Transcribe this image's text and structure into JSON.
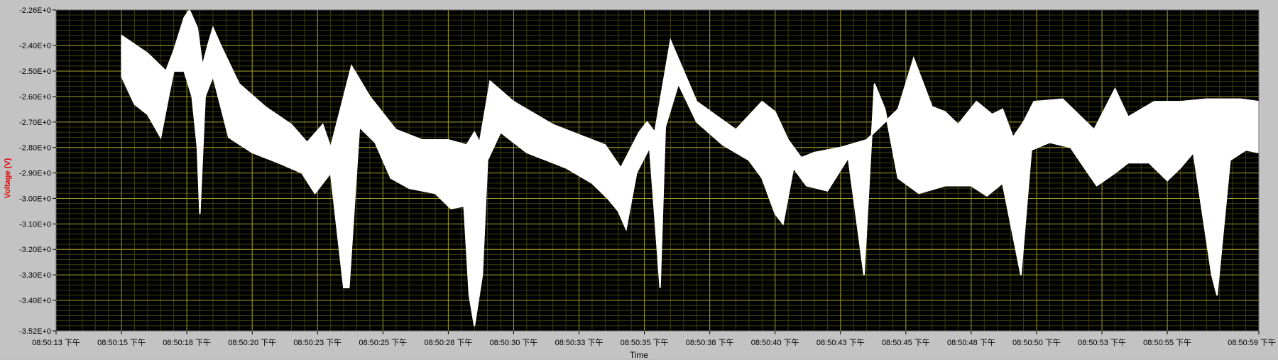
{
  "window": {
    "title": ""
  },
  "chart_data": {
    "type": "line",
    "title": "",
    "xlabel": "Time",
    "ylabel": "Voltage (V)",
    "ylim": [
      -3.52,
      -2.26
    ],
    "y_ticks": [
      "-2.26E+0",
      "-2.40E+0",
      "-2.50E+0",
      "-2.60E+0",
      "-2.70E+0",
      "-2.80E+0",
      "-2.90E+0",
      "-3.00E+0",
      "-3.10E+0",
      "-3.20E+0",
      "-3.30E+0",
      "-3.40E+0",
      "-3.52E+0"
    ],
    "y_tick_values": [
      -2.26,
      -2.4,
      -2.5,
      -2.6,
      -2.7,
      -2.8,
      -2.9,
      -3.0,
      -3.1,
      -3.2,
      -3.3,
      -3.4,
      -3.52
    ],
    "x_ticks": [
      "08:50:13 下午",
      "08:50:15 下午",
      "08:50:18 下午",
      "08:50:20 下午",
      "08:50:23 下午",
      "08:50:25 下午",
      "08:50:28 下午",
      "08:50:30 下午",
      "08:50:33 下午",
      "08:50:35 下午",
      "08:50:38 下午",
      "08:50:40 下午",
      "08:50:43 下午",
      "08:50:45 下午",
      "08:50:48 下午",
      "08:50:50 下午",
      "08:50:53 下午",
      "08:50:55 下午",
      "08:50:59 下午"
    ],
    "x_tick_seconds": [
      13,
      15.5,
      18,
      20.5,
      23,
      25.5,
      28,
      30.5,
      33,
      35.5,
      38,
      40.5,
      43,
      45.5,
      48,
      50.5,
      53,
      55.5,
      59
    ],
    "xlim": [
      13,
      59
    ],
    "grid": true,
    "colors": {
      "background": "#000000",
      "trace": "#ffffff",
      "grid": "#9a9a28",
      "grid_minor": "#3d3d12",
      "ylabel_color": "#e00000",
      "panel": "#c3c3c3"
    },
    "series": [
      {
        "upper": [
          [
            15.5,
            -2.36
          ],
          [
            16.5,
            -2.43
          ],
          [
            17.2,
            -2.5
          ],
          [
            17.5,
            -2.42
          ],
          [
            17.9,
            -2.29
          ],
          [
            18.1,
            -2.26
          ],
          [
            18.4,
            -2.33
          ],
          [
            18.6,
            -2.48
          ],
          [
            18.8,
            -2.4
          ],
          [
            19.0,
            -2.33
          ],
          [
            19.3,
            -2.4
          ],
          [
            20.0,
            -2.55
          ],
          [
            21.0,
            -2.64
          ],
          [
            22.0,
            -2.71
          ],
          [
            22.6,
            -2.78
          ],
          [
            23.2,
            -2.71
          ],
          [
            23.5,
            -2.8
          ],
          [
            24.0,
            -2.6
          ],
          [
            24.3,
            -2.48
          ],
          [
            25.0,
            -2.6
          ],
          [
            26.0,
            -2.73
          ],
          [
            27.0,
            -2.77
          ],
          [
            28.0,
            -2.77
          ],
          [
            28.7,
            -2.79
          ],
          [
            29.0,
            -2.74
          ],
          [
            29.2,
            -2.78
          ],
          [
            29.6,
            -2.54
          ],
          [
            30.5,
            -2.62
          ],
          [
            32.0,
            -2.71
          ],
          [
            33.0,
            -2.75
          ],
          [
            34.0,
            -2.79
          ],
          [
            34.6,
            -2.88
          ],
          [
            35.3,
            -2.74
          ],
          [
            35.6,
            -2.7
          ],
          [
            35.9,
            -2.74
          ],
          [
            36.5,
            -2.38
          ],
          [
            37.5,
            -2.62
          ],
          [
            39.0,
            -2.73
          ],
          [
            40.0,
            -2.62
          ],
          [
            40.5,
            -2.66
          ],
          [
            41.0,
            -2.77
          ],
          [
            41.5,
            -2.84
          ],
          [
            42.0,
            -2.82
          ],
          [
            43.0,
            -2.8
          ],
          [
            44.0,
            -2.77
          ],
          [
            45.2,
            -2.65
          ],
          [
            45.8,
            -2.45
          ],
          [
            46.5,
            -2.64
          ],
          [
            47.0,
            -2.66
          ],
          [
            47.5,
            -2.71
          ],
          [
            48.2,
            -2.62
          ],
          [
            48.8,
            -2.67
          ],
          [
            49.2,
            -2.65
          ],
          [
            49.6,
            -2.76
          ],
          [
            50.0,
            -2.7
          ],
          [
            50.4,
            -2.62
          ],
          [
            51.5,
            -2.61
          ],
          [
            52.7,
            -2.73
          ],
          [
            53.5,
            -2.57
          ],
          [
            54.0,
            -2.68
          ],
          [
            55.0,
            -2.62
          ],
          [
            56.0,
            -2.62
          ],
          [
            57.0,
            -2.61
          ],
          [
            58.3,
            -2.61
          ],
          [
            59.0,
            -2.62
          ]
        ],
        "lower": [
          [
            15.5,
            -2.52
          ],
          [
            16.0,
            -2.63
          ],
          [
            16.5,
            -2.67
          ],
          [
            17.0,
            -2.76
          ],
          [
            17.3,
            -2.6
          ],
          [
            17.5,
            -2.5
          ],
          [
            17.9,
            -2.5
          ],
          [
            18.2,
            -2.6
          ],
          [
            18.4,
            -2.8
          ],
          [
            18.5,
            -3.06
          ],
          [
            18.7,
            -2.6
          ],
          [
            19.0,
            -2.52
          ],
          [
            19.6,
            -2.76
          ],
          [
            20.5,
            -2.82
          ],
          [
            21.5,
            -2.86
          ],
          [
            22.4,
            -2.9
          ],
          [
            22.9,
            -2.98
          ],
          [
            23.5,
            -2.9
          ],
          [
            24.0,
            -3.35
          ],
          [
            24.2,
            -3.35
          ],
          [
            24.6,
            -2.72
          ],
          [
            25.2,
            -2.78
          ],
          [
            25.8,
            -2.92
          ],
          [
            26.5,
            -2.96
          ],
          [
            27.5,
            -2.98
          ],
          [
            28.1,
            -3.04
          ],
          [
            28.6,
            -3.03
          ],
          [
            28.8,
            -3.38
          ],
          [
            29.0,
            -3.5
          ],
          [
            29.3,
            -3.3
          ],
          [
            29.5,
            -2.85
          ],
          [
            30.0,
            -2.74
          ],
          [
            31.0,
            -2.82
          ],
          [
            32.5,
            -2.88
          ],
          [
            33.5,
            -2.94
          ],
          [
            34.1,
            -3.0
          ],
          [
            34.5,
            -3.05
          ],
          [
            34.8,
            -3.12
          ],
          [
            35.2,
            -2.9
          ],
          [
            35.7,
            -2.8
          ],
          [
            36.1,
            -3.35
          ],
          [
            36.3,
            -2.72
          ],
          [
            36.8,
            -2.55
          ],
          [
            37.5,
            -2.7
          ],
          [
            38.5,
            -2.79
          ],
          [
            39.5,
            -2.85
          ],
          [
            40.0,
            -2.92
          ],
          [
            40.5,
            -3.06
          ],
          [
            40.8,
            -3.1
          ],
          [
            41.2,
            -2.88
          ],
          [
            41.7,
            -2.95
          ],
          [
            42.5,
            -2.97
          ],
          [
            43.3,
            -2.84
          ],
          [
            43.9,
            -3.3
          ],
          [
            44.3,
            -2.55
          ],
          [
            44.7,
            -2.65
          ],
          [
            45.2,
            -2.92
          ],
          [
            46.0,
            -2.98
          ],
          [
            47.0,
            -2.95
          ],
          [
            48.0,
            -2.95
          ],
          [
            48.6,
            -2.99
          ],
          [
            49.2,
            -2.94
          ],
          [
            49.9,
            -3.3
          ],
          [
            50.3,
            -2.81
          ],
          [
            51.0,
            -2.78
          ],
          [
            51.8,
            -2.8
          ],
          [
            52.4,
            -2.89
          ],
          [
            52.8,
            -2.95
          ],
          [
            53.5,
            -2.9
          ],
          [
            54.0,
            -2.86
          ],
          [
            54.8,
            -2.86
          ],
          [
            55.5,
            -2.93
          ],
          [
            56.0,
            -2.88
          ],
          [
            56.5,
            -2.82
          ],
          [
            57.2,
            -3.3
          ],
          [
            57.4,
            -3.38
          ],
          [
            57.9,
            -2.85
          ],
          [
            58.5,
            -2.81
          ],
          [
            59.0,
            -2.82
          ]
        ]
      }
    ]
  }
}
